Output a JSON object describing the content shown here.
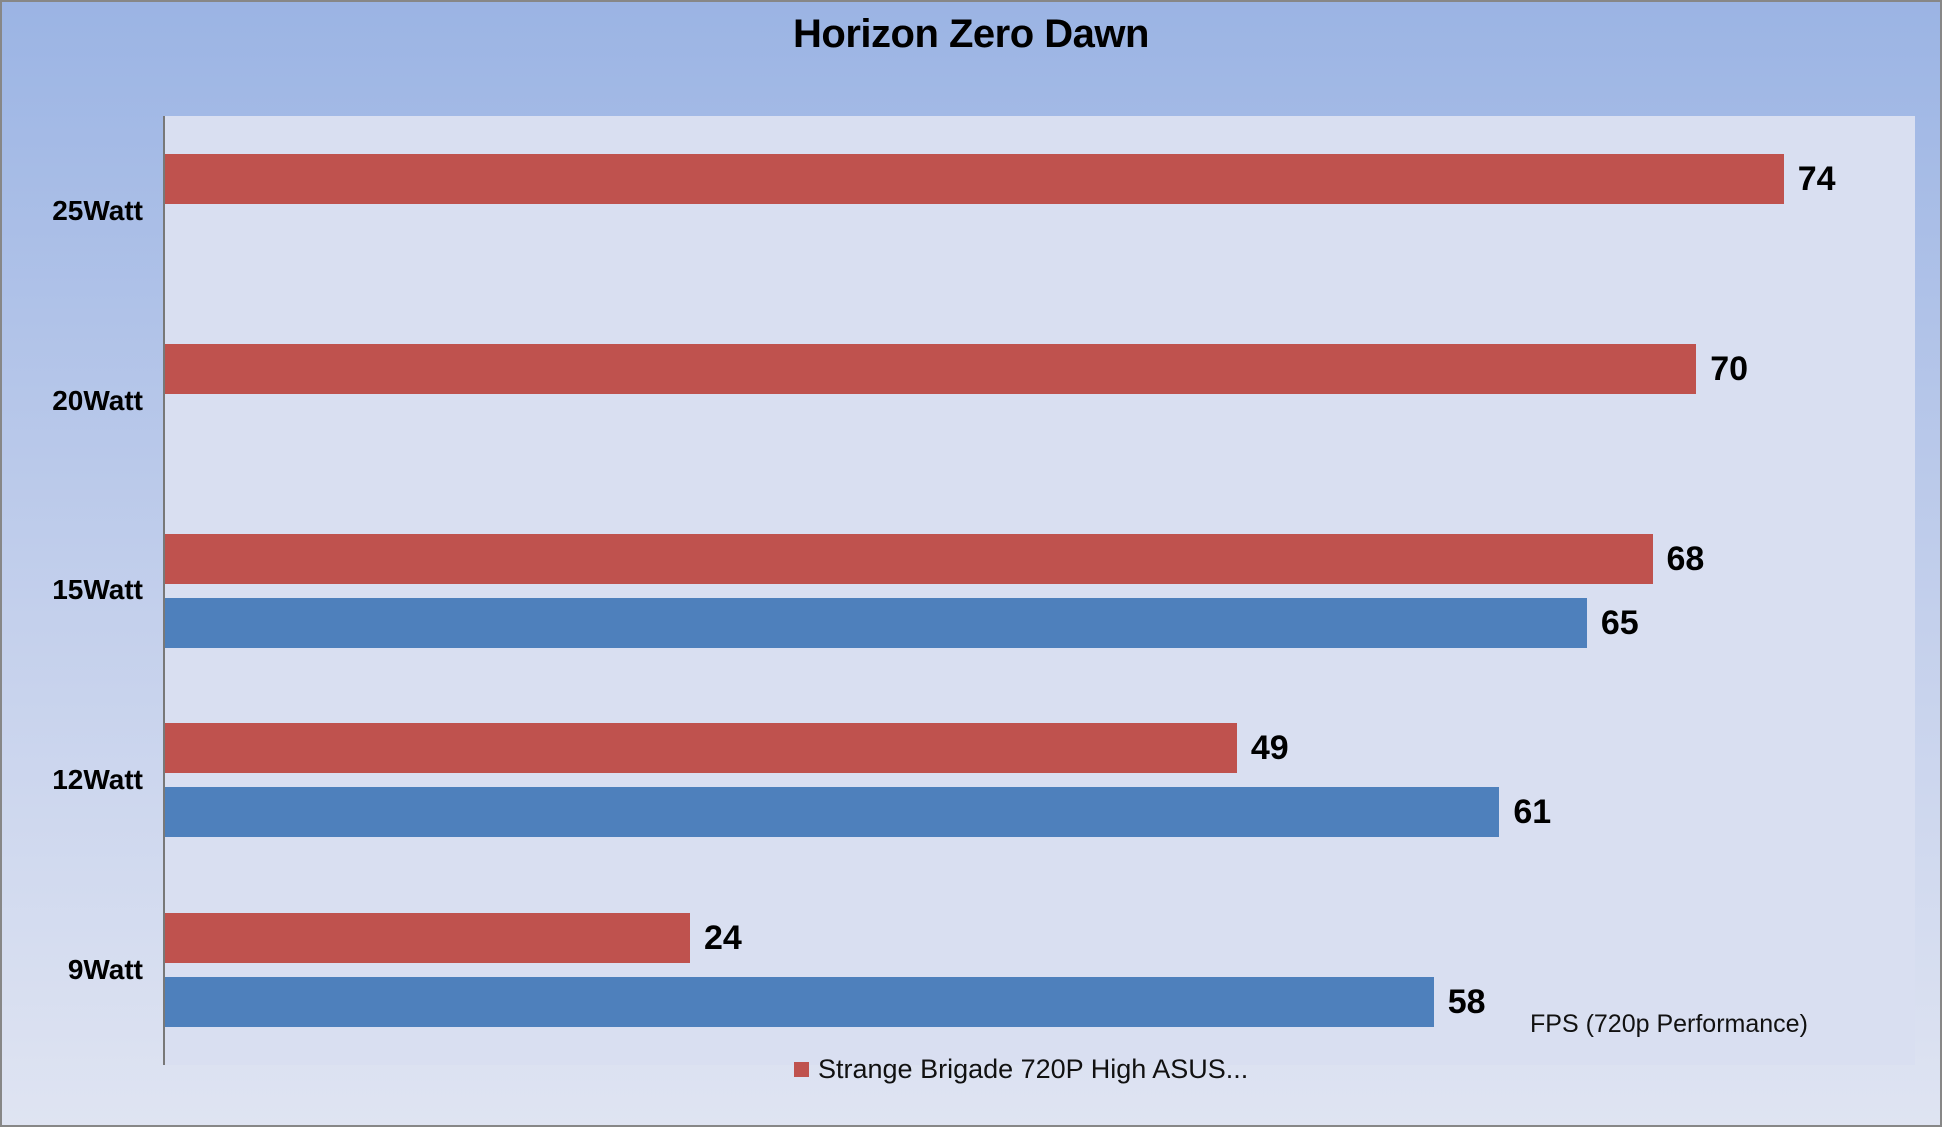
{
  "title": "Horizon Zero Dawn",
  "axis_note": "FPS (720p Performance)",
  "colors": {
    "red_series": "#bf524e",
    "blue_series": "#4e80bc",
    "plot_bg": "#d9dff1",
    "bg_top": "#9bb4e4",
    "bg_bottom": "#dfe4f2",
    "frame_border": "#878787",
    "axis_line": "#787878",
    "text": "#000000"
  },
  "legend": {
    "items": [
      {
        "label": "Strange Brigade 720P High ASUS...",
        "color": "#bf524e"
      }
    ]
  },
  "chart_data": {
    "type": "bar",
    "orientation": "horizontal",
    "title": "Horizon Zero Dawn",
    "xlabel": "FPS (720p Performance)",
    "ylabel": "",
    "categories": [
      "25Watt",
      "20Watt",
      "15Watt",
      "12Watt",
      "9Watt"
    ],
    "series": [
      {
        "name": "Strange Brigade 720P High ASUS...",
        "color": "#bf524e",
        "values": [
          74,
          70,
          68,
          49,
          24
        ]
      },
      {
        "name": "",
        "color": "#4e80bc",
        "values": [
          null,
          null,
          65,
          61,
          58
        ]
      }
    ],
    "xlim": [
      0,
      80
    ],
    "grid": false,
    "value_labels": true,
    "legend_position": "bottom",
    "legend_visible_entries": [
      "Strange Brigade 720P High ASUS..."
    ]
  }
}
